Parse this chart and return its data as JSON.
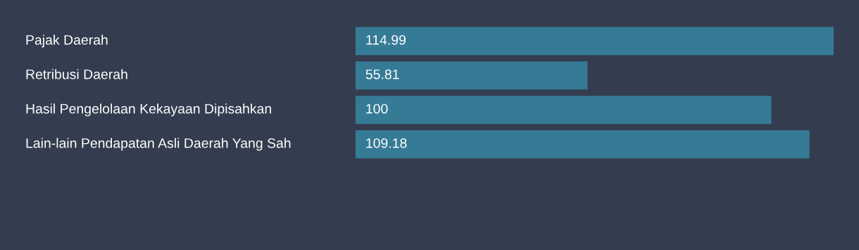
{
  "chart_data": {
    "type": "bar",
    "orientation": "horizontal",
    "categories": [
      "Pajak Daerah",
      "Retribusi Daerah",
      "Hasil Pengelolaan Kekayaan Dipisahkan",
      "Lain-lain Pendapatan Asli Daerah Yang Sah"
    ],
    "values": [
      114.99,
      55.81,
      100,
      109.18
    ],
    "color": "#367b95",
    "data_labels": true
  }
}
